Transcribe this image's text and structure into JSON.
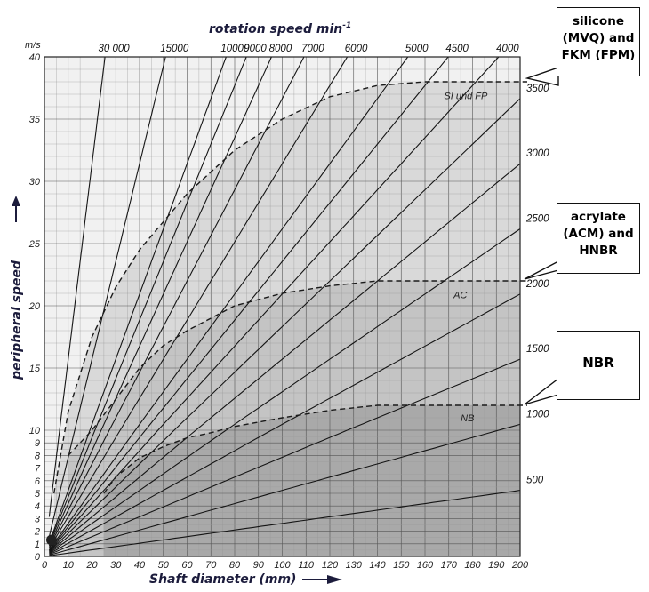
{
  "chart_data": {
    "type": "line",
    "title": "rotation speed min",
    "title_sup": "-1",
    "xlabel": "Shaft diameter (mm)",
    "ylabel": "peripheral speed",
    "y_unit": "m/s",
    "xlim": [
      0,
      200
    ],
    "ylim": [
      0,
      40
    ],
    "y_scale": "piecewise: 0-10 linear, 10-40 linear (expanded lower section)",
    "grid": true,
    "x_ticks": [
      0,
      10,
      20,
      30,
      40,
      50,
      60,
      70,
      80,
      90,
      100,
      110,
      120,
      130,
      140,
      150,
      160,
      170,
      180,
      190,
      200
    ],
    "y_ticks": [
      0,
      1,
      2,
      3,
      4,
      5,
      6,
      7,
      8,
      9,
      10,
      15,
      20,
      25,
      30,
      35,
      40
    ],
    "speed_lines_rpm": [
      500,
      1000,
      1500,
      2000,
      2500,
      3000,
      3500,
      4000,
      4500,
      5000,
      6000,
      7000,
      8000,
      9000,
      10000,
      15000,
      30000
    ],
    "top_labels": [
      {
        "rpm": 30000,
        "text": "30 000"
      },
      {
        "rpm": 15000,
        "text": "15000"
      },
      {
        "rpm": 10000,
        "text": "10000"
      },
      {
        "rpm": 9000,
        "text": "9000"
      },
      {
        "rpm": 8000,
        "text": "8000"
      },
      {
        "rpm": 7000,
        "text": "7000"
      },
      {
        "rpm": 6000,
        "text": "6000"
      },
      {
        "rpm": 5000,
        "text": "5000"
      },
      {
        "rpm": 4500,
        "text": "4500"
      },
      {
        "rpm": 4000,
        "text": "4000"
      }
    ],
    "right_labels": [
      {
        "rpm": 3500,
        "text": "3500"
      },
      {
        "rpm": 3000,
        "text": "3000"
      },
      {
        "rpm": 2500,
        "text": "2500"
      },
      {
        "rpm": 2000,
        "text": "2000"
      },
      {
        "rpm": 1500,
        "text": "1500"
      },
      {
        "rpm": 1000,
        "text": "1000"
      },
      {
        "rpm": 500,
        "text": "500"
      }
    ],
    "limit_curves": [
      {
        "name": "SI und FP",
        "plateau": 38,
        "points": [
          [
            4,
            5
          ],
          [
            10,
            11.5
          ],
          [
            20,
            17.5
          ],
          [
            30,
            21.5
          ],
          [
            40,
            24.5
          ],
          [
            60,
            29
          ],
          [
            80,
            32.5
          ],
          [
            100,
            35
          ],
          [
            120,
            36.8
          ],
          [
            140,
            37.7
          ],
          [
            160,
            38
          ],
          [
            200,
            38
          ]
        ]
      },
      {
        "name": "AC",
        "plateau": 22,
        "points": [
          [
            10,
            8
          ],
          [
            20,
            10
          ],
          [
            30,
            12.5
          ],
          [
            40,
            15
          ],
          [
            50,
            16.8
          ],
          [
            60,
            18
          ],
          [
            80,
            20
          ],
          [
            100,
            21
          ],
          [
            120,
            21.6
          ],
          [
            140,
            22
          ],
          [
            200,
            22
          ]
        ]
      },
      {
        "name": "NB",
        "plateau": 12,
        "points": [
          [
            25,
            5
          ],
          [
            30,
            6.3
          ],
          [
            40,
            7.8
          ],
          [
            50,
            8.7
          ],
          [
            60,
            9.4
          ],
          [
            70,
            9.8
          ],
          [
            80,
            10.3
          ],
          [
            100,
            11
          ],
          [
            120,
            11.6
          ],
          [
            140,
            12
          ],
          [
            200,
            12
          ]
        ]
      }
    ],
    "callouts": [
      {
        "lines": [
          "silicone",
          "(MVQ) and",
          "FKM (FPM)"
        ]
      },
      {
        "lines": [
          "acrylate",
          "(ACM) and",
          "HNBR"
        ]
      },
      {
        "lines": [
          "NBR"
        ]
      }
    ]
  }
}
